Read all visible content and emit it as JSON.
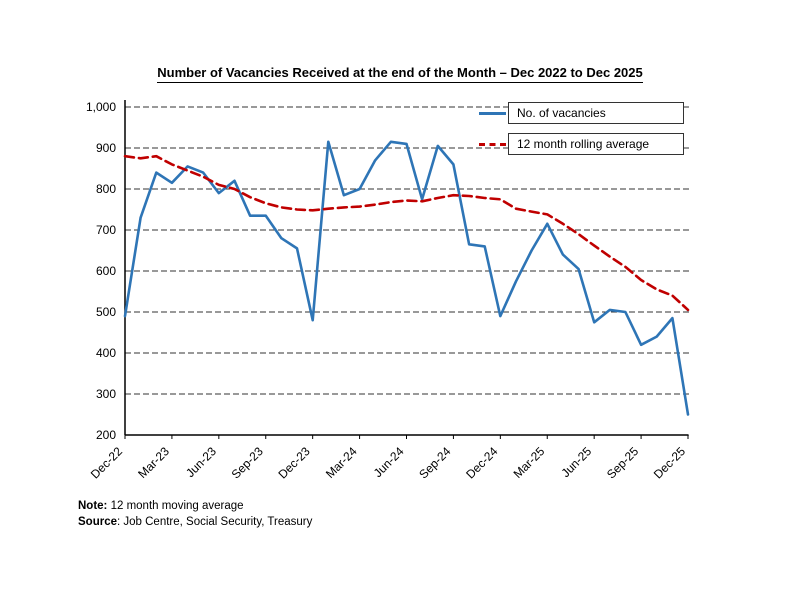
{
  "chart_data": {
    "type": "line",
    "title": "Number of Vacancies Received at the end of the Month – Dec 2022 to Dec 2025",
    "x": [
      "Dec-22",
      "Jan-23",
      "Feb-23",
      "Mar-23",
      "Apr-23",
      "May-23",
      "Jun-23",
      "Jul-23",
      "Aug-23",
      "Sep-23",
      "Oct-23",
      "Nov-23",
      "Dec-23",
      "Jan-24",
      "Feb-24",
      "Mar-24",
      "Apr-24",
      "May-24",
      "Jun-24",
      "Jul-24",
      "Aug-24",
      "Sep-24",
      "Oct-24",
      "Nov-24",
      "Dec-24",
      "Jan-25",
      "Feb-25",
      "Mar-25",
      "Apr-25",
      "May-25",
      "Jun-25",
      "Jul-25",
      "Aug-25",
      "Sep-25",
      "Oct-25",
      "Nov-25",
      "Dec-25"
    ],
    "series": [
      {
        "name": "No. of vacancies",
        "color": "#2e75b6",
        "style": "solid",
        "values": [
          490,
          730,
          840,
          815,
          855,
          840,
          790,
          820,
          735,
          735,
          680,
          655,
          480,
          915,
          785,
          800,
          870,
          915,
          910,
          775,
          905,
          860,
          665,
          660,
          490,
          575,
          650,
          715,
          640,
          605,
          475,
          505,
          500,
          420,
          440,
          485,
          250
        ]
      },
      {
        "name": "12 month rolling average",
        "color": "#c00000",
        "style": "dashed",
        "values": [
          880,
          875,
          880,
          860,
          845,
          830,
          810,
          800,
          780,
          765,
          755,
          750,
          748,
          752,
          755,
          757,
          762,
          768,
          772,
          770,
          778,
          785,
          783,
          778,
          775,
          752,
          745,
          738,
          715,
          690,
          662,
          635,
          610,
          578,
          555,
          540,
          505
        ]
      }
    ],
    "ylim": [
      200,
      1000
    ],
    "y_ticks": [
      {
        "value": 1000,
        "label": "1,000"
      },
      {
        "value": 900,
        "label": "900"
      },
      {
        "value": 800,
        "label": "800"
      },
      {
        "value": 700,
        "label": "700"
      },
      {
        "value": 600,
        "label": "600"
      },
      {
        "value": 500,
        "label": "500"
      },
      {
        "value": 400,
        "label": "400"
      },
      {
        "value": 300,
        "label": "300"
      },
      {
        "value": 200,
        "label": "200"
      }
    ],
    "x_tick_labels": [
      "Dec-22",
      "Mar-23",
      "Jun-23",
      "Sep-23",
      "Dec-23",
      "Mar-24",
      "Jun-24",
      "Sep-24",
      "Dec-24",
      "Mar-25",
      "Jun-25",
      "Sep-25",
      "Dec-25"
    ],
    "x_tick_every": 3,
    "grid": "horizontal-dashed",
    "legend_position": "top-right"
  },
  "notes": {
    "note_label": "Note:",
    "note_text": " 12 month moving average",
    "source_label": "Source",
    "source_text": ": Job Centre, Social Security, Treasury"
  }
}
